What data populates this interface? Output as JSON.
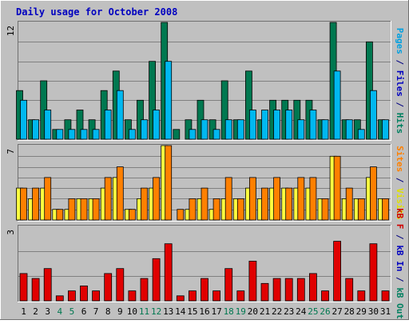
{
  "chart_data": {
    "type": "bar",
    "title": "Daily usage for October 2008",
    "categories": [
      "1",
      "2",
      "3",
      "4",
      "5",
      "6",
      "7",
      "8",
      "9",
      "10",
      "11",
      "12",
      "13",
      "14",
      "15",
      "16",
      "17",
      "18",
      "19",
      "20",
      "21",
      "22",
      "23",
      "24",
      "25",
      "26",
      "27",
      "28",
      "29",
      "30",
      "31"
    ],
    "weekend_days": [
      "4",
      "5",
      "11",
      "12",
      "18",
      "19",
      "25",
      "26"
    ],
    "panels": [
      {
        "ylim": [
          0,
          12
        ],
        "ymax_label": "12",
        "axis_label_parts": [
          {
            "text": "Pages",
            "color": "#00a0e0"
          },
          {
            "text": " / ",
            "color": "#000080"
          },
          {
            "text": "Files",
            "color": "#0000c0"
          },
          {
            "text": " / ",
            "color": "#000080"
          },
          {
            "text": "Hits",
            "color": "#008060"
          }
        ],
        "series": [
          {
            "name": "Hits",
            "color": "#007850",
            "values": [
              5,
              2,
              6,
              1,
              2,
              3,
              2,
              5,
              7,
              2,
              4,
              8,
              12,
              1,
              2,
              4,
              2,
              6,
              2,
              7,
              2,
              4,
              4,
              4,
              4,
              2,
              12,
              2,
              2,
              10,
              2
            ]
          },
          {
            "name": "Files",
            "color": "#00b8f0",
            "values": [
              4,
              2,
              3,
              1,
              1,
              1,
              1,
              3,
              5,
              1,
              2,
              3,
              8,
              0,
              1,
              2,
              1,
              2,
              2,
              3,
              3,
              3,
              3,
              2,
              3,
              2,
              7,
              2,
              1,
              5,
              2
            ]
          }
        ]
      },
      {
        "ylim": [
          0,
          7
        ],
        "ymax_label": "7",
        "axis_label_parts": [
          {
            "text": "Sites",
            "color": "#ff8000"
          },
          {
            "text": " / ",
            "color": "#000080"
          },
          {
            "text": "Visits",
            "color": "#e0e000"
          }
        ],
        "series": [
          {
            "name": "Visits",
            "color": "#ffff40",
            "values": [
              3,
              2,
              3,
              1,
              1,
              2,
              2,
              3,
              4,
              1,
              2,
              3,
              7,
              0,
              1,
              2,
              1,
              2,
              2,
              3,
              2,
              3,
              3,
              3,
              3,
              2,
              6,
              2,
              2,
              4,
              2
            ]
          },
          {
            "name": "Sites",
            "color": "#ff8000",
            "values": [
              3,
              3,
              4,
              1,
              2,
              2,
              2,
              4,
              5,
              1,
              3,
              4,
              7,
              1,
              2,
              3,
              2,
              4,
              2,
              4,
              3,
              4,
              3,
              4,
              4,
              2,
              6,
              3,
              2,
              5,
              2
            ]
          }
        ]
      },
      {
        "ylim": [
          0,
          3
        ],
        "ymax_label": "3",
        "axis_label_parts": [
          {
            "text": "kB F",
            "color": "#d00000"
          },
          {
            "text": " / ",
            "color": "#000080"
          },
          {
            "text": "kB In",
            "color": "#0000c0"
          },
          {
            "text": " / ",
            "color": "#000080"
          },
          {
            "text": "kB Out",
            "color": "#008060"
          }
        ],
        "series": [
          {
            "name": "kB F",
            "color": "#e00000",
            "values": [
              1.1,
              0.9,
              1.3,
              0.2,
              0.4,
              0.6,
              0.4,
              1.1,
              1.3,
              0.4,
              0.9,
              1.7,
              2.3,
              0.2,
              0.4,
              0.9,
              0.4,
              1.3,
              0.4,
              1.6,
              0.7,
              0.9,
              0.9,
              0.9,
              1.1,
              0.4,
              2.4,
              0.9,
              0.4,
              2.3,
              0.4
            ]
          }
        ]
      }
    ]
  },
  "colors": {
    "background": "#c0c0c0",
    "panel_bg": "#c0c0c0",
    "gridline": "#808080",
    "title": "#0000c0",
    "weekday_label": "#000000",
    "weekend_label": "#007850",
    "bevel_light": "#ffffff",
    "bevel_dark": "#707070",
    "bar_outline": "#000000"
  }
}
